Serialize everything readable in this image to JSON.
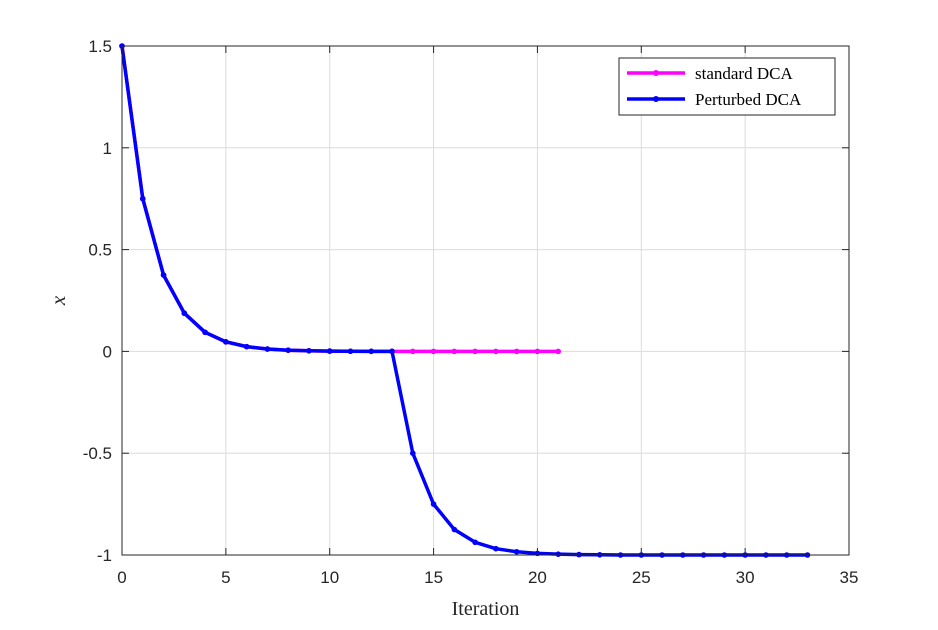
{
  "chart_data": {
    "type": "line",
    "title": "",
    "xlabel": "Iteration",
    "ylabel": "x",
    "xlim": [
      0,
      35
    ],
    "ylim": [
      -1,
      1.5
    ],
    "xticks": [
      0,
      5,
      10,
      15,
      20,
      25,
      30,
      35
    ],
    "yticks": [
      -1,
      -0.5,
      0,
      0.5,
      1,
      1.5
    ],
    "xtick_labels": [
      "0",
      "5",
      "10",
      "15",
      "20",
      "25",
      "30",
      "35"
    ],
    "ytick_labels": [
      "-1",
      "-0.5",
      "0",
      "0.5",
      "1",
      "1.5"
    ],
    "grid": true,
    "legend_position": "top-right",
    "series": [
      {
        "name": "standard DCA",
        "color": "#ff00ff",
        "x": [
          0,
          1,
          2,
          3,
          4,
          5,
          6,
          7,
          8,
          9,
          10,
          11,
          12,
          13,
          14,
          15,
          16,
          17,
          18,
          19,
          20,
          21
        ],
        "y": [
          1.5,
          0.75,
          0.375,
          0.1875,
          0.09375,
          0.046875,
          0.0234,
          0.0117,
          0.0059,
          0.0029,
          0.0015,
          0.0007,
          0.0004,
          0.0002,
          0.0001,
          0,
          0,
          0,
          0,
          0,
          0,
          0
        ]
      },
      {
        "name": "Perturbed DCA",
        "color": "#0000ff",
        "x": [
          0,
          1,
          2,
          3,
          4,
          5,
          6,
          7,
          8,
          9,
          10,
          11,
          12,
          13,
          14,
          15,
          16,
          17,
          18,
          19,
          20,
          21,
          22,
          23,
          24,
          25,
          26,
          27,
          28,
          29,
          30,
          31,
          32,
          33
        ],
        "y": [
          1.5,
          0.75,
          0.375,
          0.1875,
          0.09375,
          0.046875,
          0.0234,
          0.0117,
          0.0059,
          0.0029,
          0.0015,
          0.0007,
          0.0004,
          0.0002,
          -0.5,
          -0.75,
          -0.875,
          -0.9375,
          -0.969,
          -0.984,
          -0.992,
          -0.996,
          -0.998,
          -0.999,
          -1,
          -1,
          -1,
          -1,
          -1,
          -1,
          -1,
          -1,
          -1,
          -1
        ]
      }
    ]
  }
}
